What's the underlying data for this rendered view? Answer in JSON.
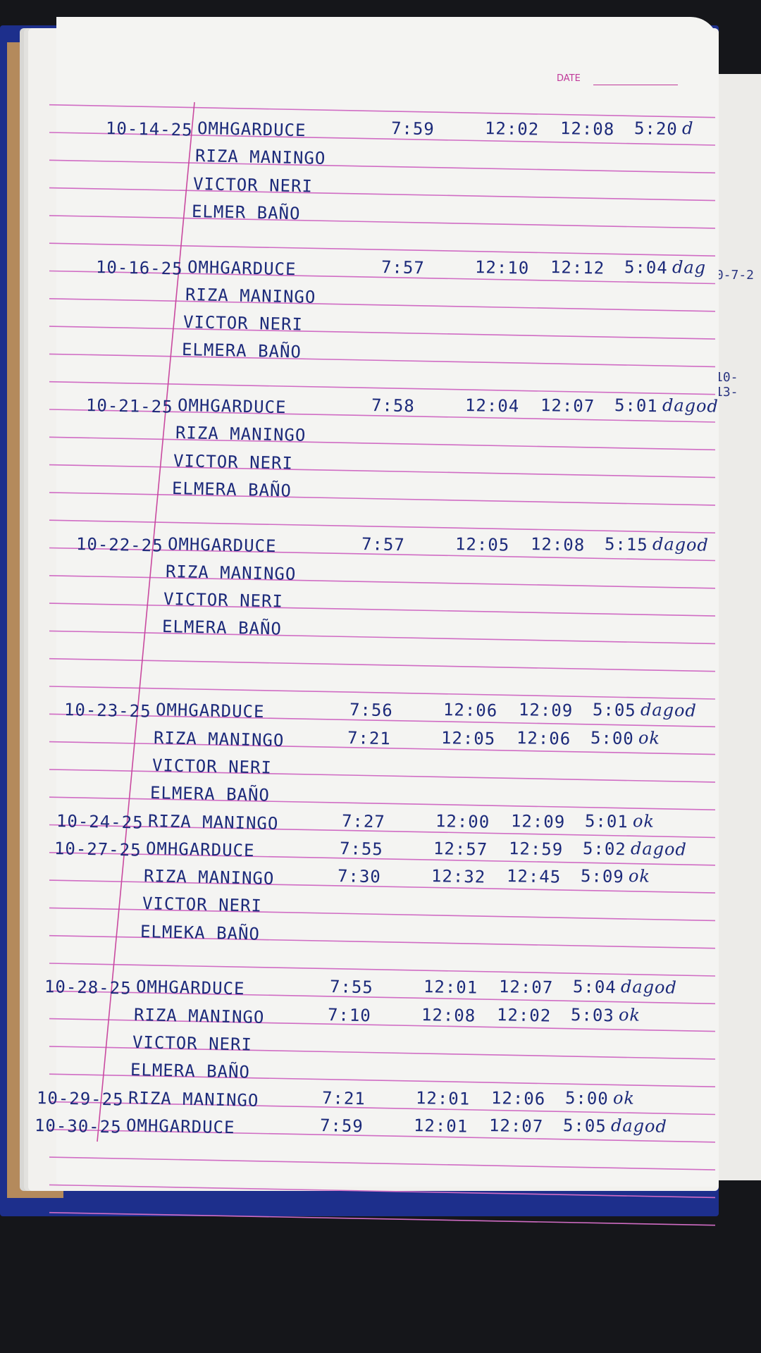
{
  "header": {
    "date_label": "DATE"
  },
  "next_page": {
    "dates": [
      "10-7-2",
      "10-13-"
    ]
  },
  "colors": {
    "ink": "#1c2a7a",
    "rule": "#d06cc4",
    "margin": "#c94aa0",
    "paper": "#f4f4f2",
    "cover": "#1d2f8c"
  },
  "rows": [
    {
      "row": 0,
      "date": "10-14-25",
      "name": "OMHGARDUCE",
      "in_am": "7:59",
      "out_am": "12:02",
      "in_pm": "12:08",
      "out_pm": "5:20",
      "signature": "d"
    },
    {
      "row": 1,
      "name": "RIZA MANINGO"
    },
    {
      "row": 2,
      "name": "VICTOR NERI"
    },
    {
      "row": 3,
      "name": "ELMER BAÑO"
    },
    {
      "row": 5,
      "date": "10-16-25",
      "name": "OMHGARDUCE",
      "in_am": "7:57",
      "out_am": "12:10",
      "in_pm": "12:12",
      "out_pm": "5:04",
      "signature": "dag"
    },
    {
      "row": 6,
      "name": "RIZA MANINGO"
    },
    {
      "row": 7,
      "name": "VICTOR NERI"
    },
    {
      "row": 8,
      "name": "ELMERA BAÑO"
    },
    {
      "row": 10,
      "date": "10-21-25",
      "name": "OMHGARDUCE",
      "in_am": "7:58",
      "out_am": "12:04",
      "in_pm": "12:07",
      "out_pm": "5:01",
      "signature": "dagod"
    },
    {
      "row": 11,
      "name": "RIZA MANINGO"
    },
    {
      "row": 12,
      "name": "VICTOR NERI"
    },
    {
      "row": 13,
      "name": "ELMERA BAÑO"
    },
    {
      "row": 15,
      "date": "10-22-25",
      "name": "OMHGARDUCE",
      "in_am": "7:57",
      "out_am": "12:05",
      "in_pm": "12:08",
      "out_pm": "5:15",
      "signature": "dagod"
    },
    {
      "row": 16,
      "name": "RIZA MANINGO"
    },
    {
      "row": 17,
      "name": "VICTOR NERI"
    },
    {
      "row": 18,
      "name": "ELMERA BAÑO"
    },
    {
      "row": 21,
      "date": "10-23-25",
      "name": "OMHGARDUCE",
      "in_am": "7:56",
      "out_am": "12:06",
      "in_pm": "12:09",
      "out_pm": "5:05",
      "signature": "dagod"
    },
    {
      "row": 22,
      "name": "RIZA MANINGO",
      "in_am": "7:21",
      "out_am": "12:05",
      "in_pm": "12:06",
      "out_pm": "5:00",
      "signature": "ok"
    },
    {
      "row": 23,
      "name": "VICTOR NERI"
    },
    {
      "row": 24,
      "name": "ELMERA BAÑO"
    },
    {
      "row": 25,
      "date": "10-24-25",
      "name": "RIZA MANINGO",
      "in_am": "7:27",
      "out_am": "12:00",
      "in_pm": "12:09",
      "out_pm": "5:01",
      "signature": "ok"
    },
    {
      "row": 26,
      "date": "10-27-25",
      "name": "OMHGARDUCE",
      "in_am": "7:55",
      "out_am": "12:57",
      "in_pm": "12:59",
      "out_pm": "5:02",
      "signature": "dagod"
    },
    {
      "row": 27,
      "name": "RIZA MANINGO",
      "in_am": "7:30",
      "out_am": "12:32",
      "in_pm": "12:45",
      "out_pm": "5:09",
      "signature": "ok"
    },
    {
      "row": 28,
      "name": "VICTOR NERI"
    },
    {
      "row": 29,
      "name": "ELMEKA BAÑO"
    },
    {
      "row": 31,
      "date": "10-28-25",
      "name": "OMHGARDUCE",
      "in_am": "7:55",
      "out_am": "12:01",
      "in_pm": "12:07",
      "out_pm": "5:04",
      "signature": "dagod"
    },
    {
      "row": 32,
      "name": "RIZA MANINGO",
      "in_am": "7:10",
      "out_am": "12:08",
      "in_pm": "12:02",
      "out_pm": "5:03",
      "signature": "ok"
    },
    {
      "row": 33,
      "name": "VICTOR NERI"
    },
    {
      "row": 34,
      "name": "ELMERA BAÑO"
    },
    {
      "row": 35,
      "date": "10-29-25",
      "name": "RIZA MANINGO",
      "in_am": "7:21",
      "out_am": "12:01",
      "in_pm": "12:06",
      "out_pm": "5:00",
      "signature": "ok"
    },
    {
      "row": 36,
      "date": "10-30-25",
      "name": "OMHGARDUCE",
      "in_am": "7:59",
      "out_am": "12:01",
      "in_pm": "12:07",
      "out_pm": "5:05",
      "signature": "dagod"
    }
  ]
}
